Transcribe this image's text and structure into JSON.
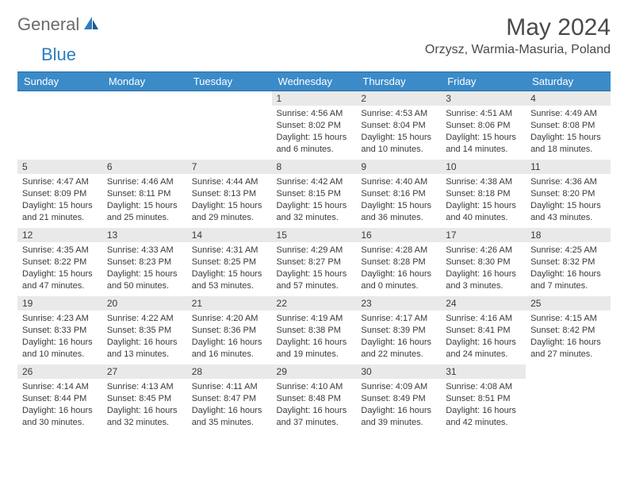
{
  "brand": {
    "general": "General",
    "blue": "Blue"
  },
  "title": "May 2024",
  "location": "Orzysz, Warmia-Masuria, Poland",
  "colors": {
    "header_bg": "#3b8bc9",
    "header_text": "#ffffff",
    "daynum_bg": "#e9e9e9",
    "text": "#3a3a3a",
    "border": "#8a8a8a",
    "logo_grey": "#6b6b6b",
    "logo_blue": "#2e7cc0"
  },
  "day_headers": [
    "Sunday",
    "Monday",
    "Tuesday",
    "Wednesday",
    "Thursday",
    "Friday",
    "Saturday"
  ],
  "weeks": [
    [
      null,
      null,
      null,
      {
        "n": "1",
        "sr": "4:56 AM",
        "ss": "8:02 PM",
        "dl": "15 hours and 6 minutes."
      },
      {
        "n": "2",
        "sr": "4:53 AM",
        "ss": "8:04 PM",
        "dl": "15 hours and 10 minutes."
      },
      {
        "n": "3",
        "sr": "4:51 AM",
        "ss": "8:06 PM",
        "dl": "15 hours and 14 minutes."
      },
      {
        "n": "4",
        "sr": "4:49 AM",
        "ss": "8:08 PM",
        "dl": "15 hours and 18 minutes."
      }
    ],
    [
      {
        "n": "5",
        "sr": "4:47 AM",
        "ss": "8:09 PM",
        "dl": "15 hours and 21 minutes."
      },
      {
        "n": "6",
        "sr": "4:46 AM",
        "ss": "8:11 PM",
        "dl": "15 hours and 25 minutes."
      },
      {
        "n": "7",
        "sr": "4:44 AM",
        "ss": "8:13 PM",
        "dl": "15 hours and 29 minutes."
      },
      {
        "n": "8",
        "sr": "4:42 AM",
        "ss": "8:15 PM",
        "dl": "15 hours and 32 minutes."
      },
      {
        "n": "9",
        "sr": "4:40 AM",
        "ss": "8:16 PM",
        "dl": "15 hours and 36 minutes."
      },
      {
        "n": "10",
        "sr": "4:38 AM",
        "ss": "8:18 PM",
        "dl": "15 hours and 40 minutes."
      },
      {
        "n": "11",
        "sr": "4:36 AM",
        "ss": "8:20 PM",
        "dl": "15 hours and 43 minutes."
      }
    ],
    [
      {
        "n": "12",
        "sr": "4:35 AM",
        "ss": "8:22 PM",
        "dl": "15 hours and 47 minutes."
      },
      {
        "n": "13",
        "sr": "4:33 AM",
        "ss": "8:23 PM",
        "dl": "15 hours and 50 minutes."
      },
      {
        "n": "14",
        "sr": "4:31 AM",
        "ss": "8:25 PM",
        "dl": "15 hours and 53 minutes."
      },
      {
        "n": "15",
        "sr": "4:29 AM",
        "ss": "8:27 PM",
        "dl": "15 hours and 57 minutes."
      },
      {
        "n": "16",
        "sr": "4:28 AM",
        "ss": "8:28 PM",
        "dl": "16 hours and 0 minutes."
      },
      {
        "n": "17",
        "sr": "4:26 AM",
        "ss": "8:30 PM",
        "dl": "16 hours and 3 minutes."
      },
      {
        "n": "18",
        "sr": "4:25 AM",
        "ss": "8:32 PM",
        "dl": "16 hours and 7 minutes."
      }
    ],
    [
      {
        "n": "19",
        "sr": "4:23 AM",
        "ss": "8:33 PM",
        "dl": "16 hours and 10 minutes."
      },
      {
        "n": "20",
        "sr": "4:22 AM",
        "ss": "8:35 PM",
        "dl": "16 hours and 13 minutes."
      },
      {
        "n": "21",
        "sr": "4:20 AM",
        "ss": "8:36 PM",
        "dl": "16 hours and 16 minutes."
      },
      {
        "n": "22",
        "sr": "4:19 AM",
        "ss": "8:38 PM",
        "dl": "16 hours and 19 minutes."
      },
      {
        "n": "23",
        "sr": "4:17 AM",
        "ss": "8:39 PM",
        "dl": "16 hours and 22 minutes."
      },
      {
        "n": "24",
        "sr": "4:16 AM",
        "ss": "8:41 PM",
        "dl": "16 hours and 24 minutes."
      },
      {
        "n": "25",
        "sr": "4:15 AM",
        "ss": "8:42 PM",
        "dl": "16 hours and 27 minutes."
      }
    ],
    [
      {
        "n": "26",
        "sr": "4:14 AM",
        "ss": "8:44 PM",
        "dl": "16 hours and 30 minutes."
      },
      {
        "n": "27",
        "sr": "4:13 AM",
        "ss": "8:45 PM",
        "dl": "16 hours and 32 minutes."
      },
      {
        "n": "28",
        "sr": "4:11 AM",
        "ss": "8:47 PM",
        "dl": "16 hours and 35 minutes."
      },
      {
        "n": "29",
        "sr": "4:10 AM",
        "ss": "8:48 PM",
        "dl": "16 hours and 37 minutes."
      },
      {
        "n": "30",
        "sr": "4:09 AM",
        "ss": "8:49 PM",
        "dl": "16 hours and 39 minutes."
      },
      {
        "n": "31",
        "sr": "4:08 AM",
        "ss": "8:51 PM",
        "dl": "16 hours and 42 minutes."
      },
      null
    ]
  ],
  "labels": {
    "sunrise": "Sunrise:",
    "sunset": "Sunset:",
    "daylight": "Daylight:"
  }
}
